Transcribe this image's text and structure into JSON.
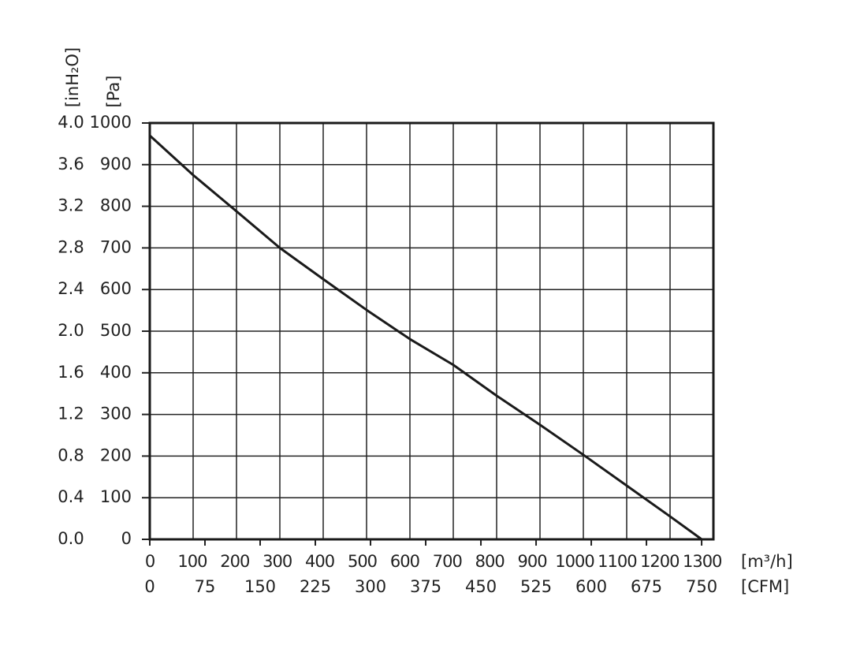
{
  "chart_data": {
    "type": "line",
    "x_label": "[m³/h]",
    "x2_label": "[CFM]",
    "y_label": "[Pa]",
    "y2_label": "[inH₂O]",
    "x": [
      0,
      100,
      200,
      300,
      400,
      500,
      600,
      700,
      800,
      900,
      1000,
      1100,
      1200,
      1273
    ],
    "series": [
      {
        "color": "#1a1a1a",
        "values": [
          970,
          875,
          788,
          700,
          625,
          551,
          481,
          419,
          345,
          275,
          203,
          129,
          55,
          0
        ]
      }
    ],
    "xlim": [
      0,
      1300
    ],
    "xticks": [
      0,
      100,
      200,
      300,
      400,
      500,
      600,
      700,
      800,
      900,
      1000,
      1100,
      1200,
      1300
    ],
    "x2lim": [
      0,
      766
    ],
    "x2ticks": [
      0,
      75,
      150,
      225,
      300,
      375,
      450,
      525,
      600,
      675,
      750
    ],
    "ylim": [
      0,
      1000
    ],
    "yticks": [
      0,
      100,
      200,
      300,
      400,
      500,
      600,
      700,
      800,
      900,
      1000
    ],
    "y2lim": [
      0,
      4
    ],
    "y2ticks": [
      {
        "value": 0,
        "label": "0.0"
      },
      0.4,
      0.8,
      1.2,
      1.6,
      {
        "value": 2,
        "label": "2.0"
      },
      2.4,
      2.8,
      3.2,
      3.6,
      {
        "value": 4,
        "label": "4.0"
      }
    ],
    "grid": true
  }
}
